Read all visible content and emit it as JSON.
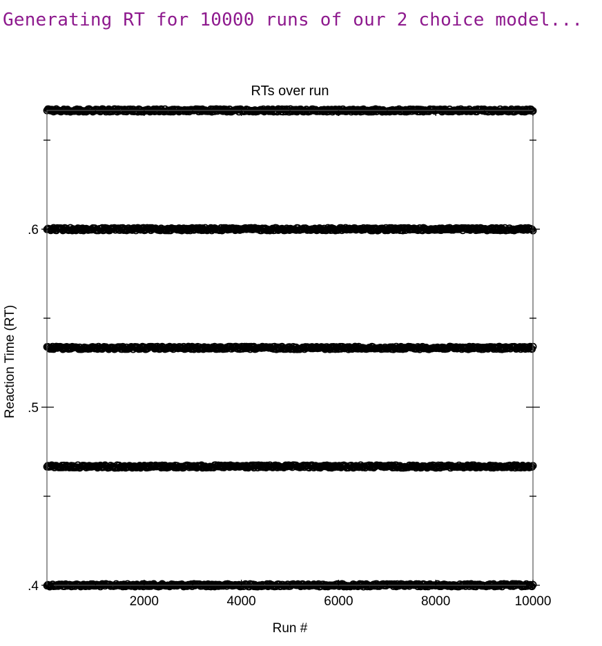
{
  "console": {
    "message": "Generating RT for 10000 runs of our 2 choice model..."
  },
  "chart_data": {
    "type": "scatter",
    "title": "RTs over run",
    "xlabel": "Run #",
    "ylabel": "Reaction Time (RT)",
    "xlim": [
      0,
      10000
    ],
    "ylim": [
      0.4,
      0.6667
    ],
    "x_major_ticks": [
      2000,
      4000,
      6000,
      8000,
      10000
    ],
    "x_major_tick_labels": [
      "2000",
      "4000",
      "6000",
      "8000",
      "10000"
    ],
    "x_minor_ticks": [
      1000,
      3000,
      5000,
      7000,
      9000
    ],
    "y_major_ticks": [
      0.4,
      0.5,
      0.6
    ],
    "y_major_tick_labels": [
      ".4",
      ".5",
      ".6"
    ],
    "y_minor_ticks": [
      0.45,
      0.55,
      0.65
    ],
    "grid": false,
    "marker": "open-circle",
    "color": "#000000",
    "series": [
      {
        "n_points": 10000,
        "x_range": [
          1,
          10000
        ],
        "y_levels": [
          0.4,
          0.4667,
          0.5333,
          0.6,
          0.6667
        ]
      }
    ]
  }
}
